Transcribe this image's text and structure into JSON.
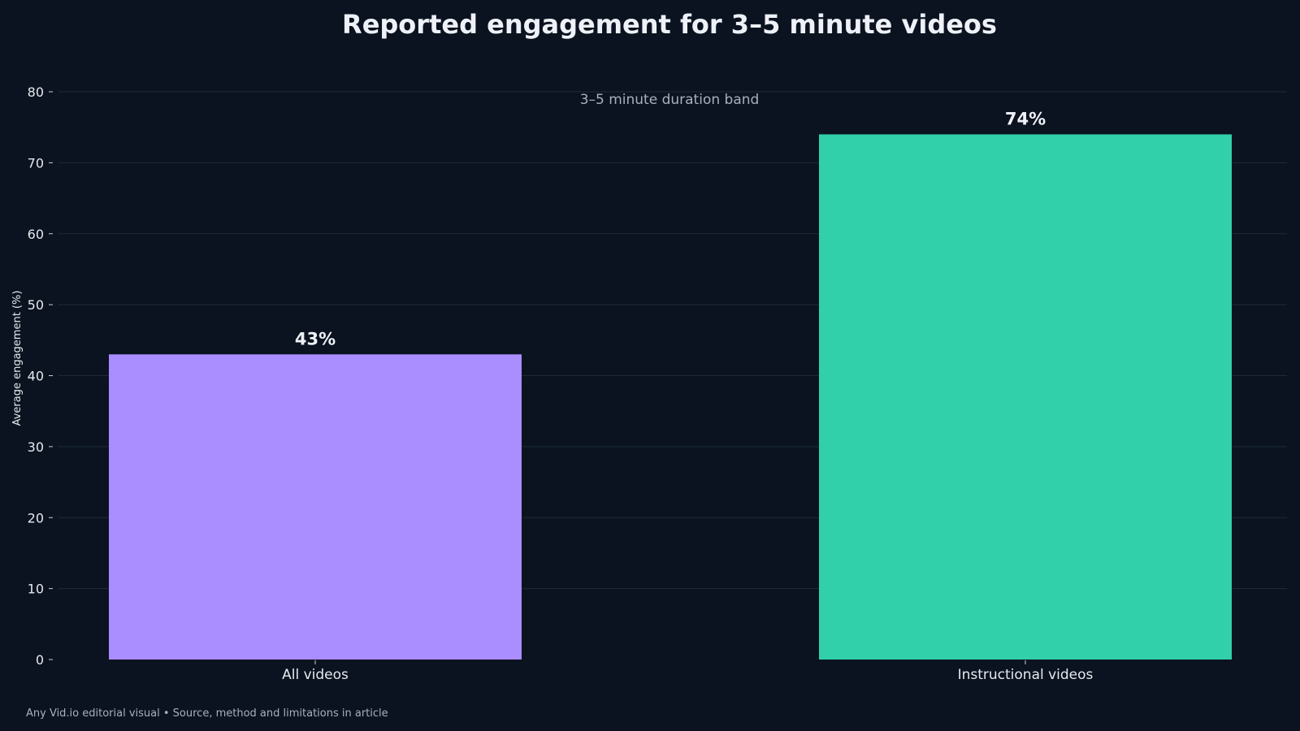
{
  "chart_data": {
    "type": "bar",
    "title": "Reported engagement for 3–5 minute videos",
    "subtitle": "3–5 minute duration band",
    "xlabel": "",
    "ylabel": "Average engagement (%)",
    "ylim": [
      0,
      80
    ],
    "yticks": [
      0,
      10,
      20,
      30,
      40,
      50,
      60,
      70,
      80
    ],
    "grid": true,
    "categories": [
      "All videos",
      "Instructional videos"
    ],
    "values": [
      43,
      74
    ],
    "data_labels": [
      "43%",
      "74%"
    ],
    "colors": [
      "#aa8dff",
      "#31d0aa"
    ]
  },
  "footer": "Any Vid.io editorial visual • Source, method and limitations in article",
  "theme": {
    "background": "#0b1320"
  }
}
